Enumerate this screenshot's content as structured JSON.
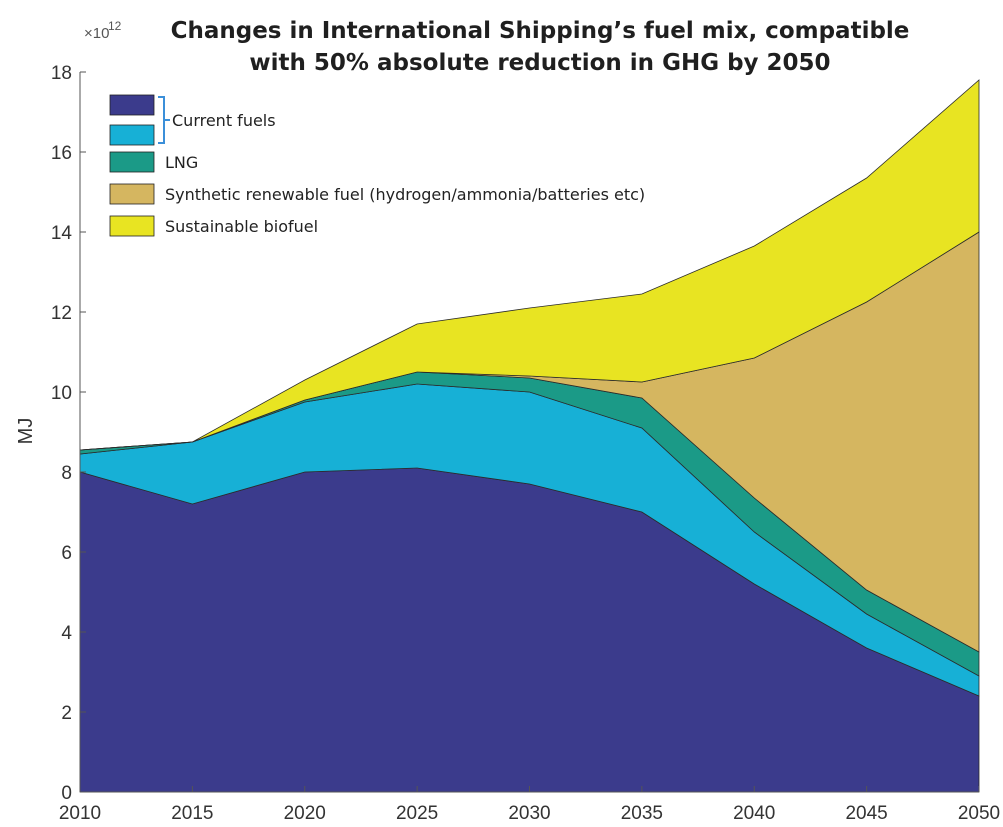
{
  "chart_data": {
    "type": "area",
    "stacked": true,
    "title_lines": [
      "Changes in International Shipping’s fuel mix, compatible",
      "with 50% absolute reduction in GHG by 2050"
    ],
    "xlabel": "",
    "ylabel": "MJ",
    "y_multiplier_label": "×10",
    "y_multiplier_exponent": "12",
    "x": [
      2010,
      2015,
      2020,
      2025,
      2030,
      2035,
      2040,
      2045,
      2050
    ],
    "xlim": [
      2010,
      2050
    ],
    "ylim": [
      0,
      18
    ],
    "xticks": [
      2010,
      2015,
      2020,
      2025,
      2030,
      2035,
      2040,
      2045,
      2050
    ],
    "yticks": [
      0,
      2,
      4,
      6,
      8,
      10,
      12,
      14,
      16,
      18
    ],
    "legend_position": "top-left",
    "grid": false,
    "series": [
      {
        "key": "current1",
        "color": "#3b3b8c",
        "values": [
          8.0,
          7.2,
          8.0,
          8.1,
          7.7,
          7.0,
          5.2,
          3.6,
          2.4
        ]
      },
      {
        "key": "current2",
        "color": "#17b0d6",
        "values": [
          0.45,
          1.55,
          1.75,
          2.1,
          2.3,
          2.1,
          1.3,
          0.85,
          0.5
        ]
      },
      {
        "key": "lng",
        "name": "LNG",
        "color": "#1b9a87",
        "values": [
          0.1,
          0.0,
          0.05,
          0.3,
          0.35,
          0.75,
          0.85,
          0.6,
          0.6
        ]
      },
      {
        "key": "synthetic",
        "name": "Synthetic renewable fuel (hydrogen/ammonia/batteries etc)",
        "color": "#d5b660",
        "values": [
          0.0,
          0.0,
          0.0,
          0.0,
          0.05,
          0.4,
          3.5,
          7.2,
          10.5
        ]
      },
      {
        "key": "biofuel",
        "name": "Sustainable biofuel",
        "color": "#e8e422",
        "values": [
          0.0,
          0.0,
          0.5,
          1.2,
          1.7,
          2.2,
          2.8,
          3.1,
          3.8
        ]
      }
    ],
    "legend": [
      {
        "swatches": [
          "#3b3b8c",
          "#17b0d6"
        ],
        "label": "Current fuels"
      },
      {
        "swatches": [
          "#1b9a87"
        ],
        "label": "LNG"
      },
      {
        "swatches": [
          "#d5b660"
        ],
        "label": "Synthetic renewable fuel (hydrogen/ammonia/batteries etc)"
      },
      {
        "swatches": [
          "#e8e422"
        ],
        "label": "Sustainable biofuel"
      }
    ]
  }
}
